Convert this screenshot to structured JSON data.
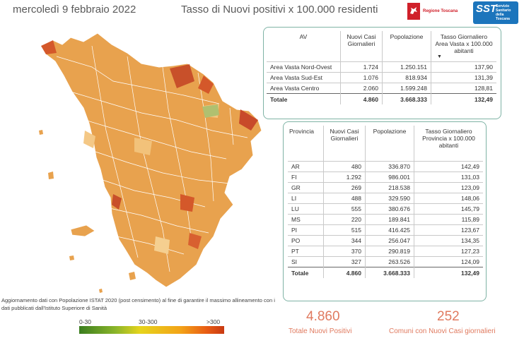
{
  "header": {
    "date": "mercoledì 9 febbraio 2022",
    "title": "Tasso di Nuovi positivi x 100.000 residenti",
    "logo_left_text": "Regione Toscana",
    "logo_right_big": "SST",
    "logo_right_small": "Servizio Sanitario della Toscana"
  },
  "colors": {
    "accent": "#e07a5f",
    "table_border": "#7fb3a5",
    "sst_blue": "#1c75bc",
    "rt_red": "#d0202a"
  },
  "av_table": {
    "headers": {
      "av": "AV",
      "cases": "Nuovi Casi Giornalieri",
      "pop": "Popolazione",
      "rate": "Tasso Giornaliero Area Vasta x 100.000 abitanti"
    },
    "sort_indicator": "▼",
    "rows": [
      {
        "name": "Area Vasta Nord-Ovest",
        "cases": "1.724",
        "pop": "1.250.151",
        "rate": "137,90"
      },
      {
        "name": "Area Vasta Sud-Est",
        "cases": "1.076",
        "pop": "818.934",
        "rate": "131,39"
      },
      {
        "name": "Area Vasta Centro",
        "cases": "2.060",
        "pop": "1.599.248",
        "rate": "128,81"
      }
    ],
    "total": {
      "name": "Totale",
      "cases": "4.860",
      "pop": "3.668.333",
      "rate": "132,49"
    }
  },
  "prov_table": {
    "headers": {
      "prov": "Provincia",
      "cases": "Nuovi Casi Giornalieri",
      "pop": "Popolazione",
      "rate": "Tasso Giornaliero Provincia x 100.000 abitanti"
    },
    "rows": [
      {
        "name": "AR",
        "cases": "480",
        "pop": "336.870",
        "rate": "142,49"
      },
      {
        "name": "FI",
        "cases": "1.292",
        "pop": "986.001",
        "rate": "131,03"
      },
      {
        "name": "GR",
        "cases": "269",
        "pop": "218.538",
        "rate": "123,09"
      },
      {
        "name": "LI",
        "cases": "488",
        "pop": "329.590",
        "rate": "148,06"
      },
      {
        "name": "LU",
        "cases": "555",
        "pop": "380.676",
        "rate": "145,79"
      },
      {
        "name": "MS",
        "cases": "220",
        "pop": "189.841",
        "rate": "115,89"
      },
      {
        "name": "PI",
        "cases": "515",
        "pop": "416.425",
        "rate": "123,67"
      },
      {
        "name": "PO",
        "cases": "344",
        "pop": "256.047",
        "rate": "134,35"
      },
      {
        "name": "PT",
        "cases": "370",
        "pop": "290.819",
        "rate": "127,23"
      },
      {
        "name": "SI",
        "cases": "327",
        "pop": "263.526",
        "rate": "124,09"
      }
    ],
    "total": {
      "name": "Totale",
      "cases": "4.860",
      "pop": "3.668.333",
      "rate": "132,49"
    }
  },
  "note": "Aggiornamento dati con Popolazione ISTAT 2020 (post censimento) al fine di garantire il massimo allineamento con i dati pubblicati dall'Istituto Superiore di Sanità",
  "legend": {
    "low": "0-30",
    "mid": "30-300",
    "high": ">300"
  },
  "kpis": {
    "total_positives_value": "4.860",
    "total_positives_label": "Totale Nuovi Positivi",
    "municipalities_value": "252",
    "municipalities_label": "Comuni con Nuovi Casi giornalieri"
  }
}
